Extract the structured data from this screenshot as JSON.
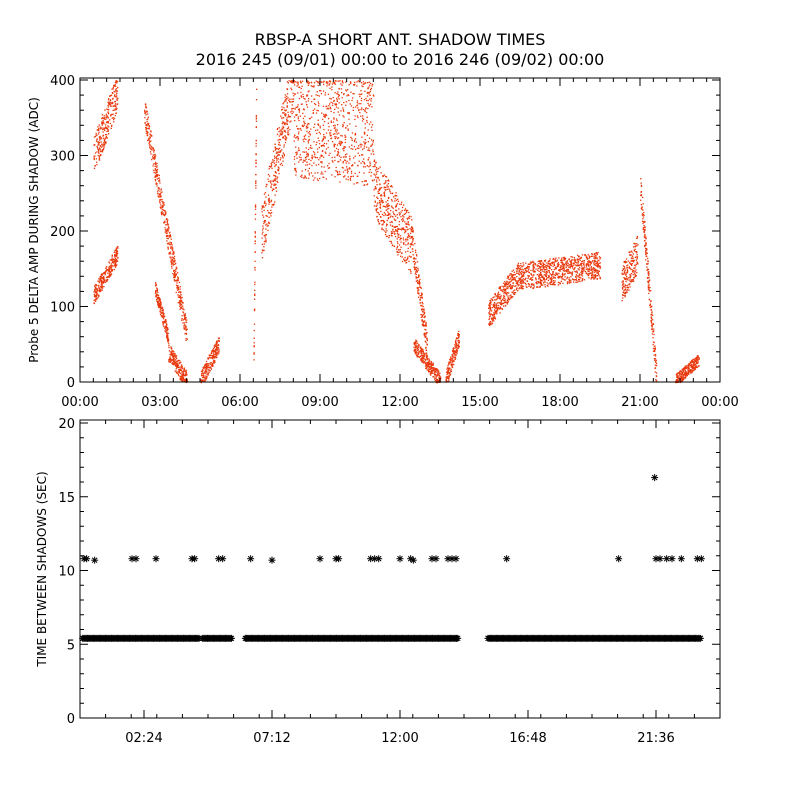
{
  "title": "RBSP-A SHORT ANT. SHADOW TIMES",
  "subtitle": "2016 245 (09/01) 00:00 to 2016 246 (09/02) 00:00",
  "colors": {
    "top_points": "#e8380c",
    "bottom_points": "#000000",
    "axes": "#000000"
  },
  "chart_data": [
    {
      "type": "scatter",
      "ylabel": "Probe 5 DELTA AMP DURING SHADOW (ADC)",
      "xlabel": "",
      "xlim_hours": [
        0,
        24
      ],
      "ylim": [
        0,
        400
      ],
      "xticks": [
        "00:00",
        "03:00",
        "06:00",
        "09:00",
        "12:00",
        "15:00",
        "18:00",
        "21:00",
        "00:00"
      ],
      "yticks": [
        "0",
        "100",
        "200",
        "300",
        "400"
      ],
      "marker": "dot",
      "segments_note_units": "x in hours, y in ADC",
      "segments": [
        {
          "x0": 0.5,
          "x1": 1.4,
          "y0": 115,
          "y1": 170,
          "spread": 12
        },
        {
          "x0": 0.5,
          "x1": 1.4,
          "y0": 300,
          "y1": 385,
          "spread": 25
        },
        {
          "x0": 2.4,
          "x1": 4.0,
          "y0": 360,
          "y1": 60,
          "spread": 18
        },
        {
          "x0": 2.8,
          "x1": 3.3,
          "y0": 125,
          "y1": 60,
          "spread": 10
        },
        {
          "x0": 3.3,
          "x1": 4.0,
          "y0": 40,
          "y1": 2,
          "spread": 12
        },
        {
          "x0": 4.5,
          "x1": 5.2,
          "y0": 2,
          "y1": 50,
          "spread": 12
        },
        {
          "x0": 6.5,
          "x1": 6.6,
          "y0": 20,
          "y1": 380,
          "spread": 10
        },
        {
          "x0": 6.8,
          "x1": 8.0,
          "y0": 200,
          "y1": 400,
          "spread": 40
        },
        {
          "x0": 8.0,
          "x1": 11.0,
          "y0": 340,
          "y1": 330,
          "spread": 70
        },
        {
          "x0": 11.0,
          "x1": 12.4,
          "y0": 260,
          "y1": 180,
          "spread": 40
        },
        {
          "x0": 12.4,
          "x1": 13.0,
          "y0": 200,
          "y1": 50,
          "spread": 20
        },
        {
          "x0": 12.5,
          "x1": 13.5,
          "y0": 50,
          "y1": 2,
          "spread": 10
        },
        {
          "x0": 13.7,
          "x1": 14.2,
          "y0": 2,
          "y1": 60,
          "spread": 12
        },
        {
          "x0": 15.3,
          "x1": 16.4,
          "y0": 90,
          "y1": 140,
          "spread": 18
        },
        {
          "x0": 16.4,
          "x1": 19.5,
          "y0": 140,
          "y1": 155,
          "spread": 18
        },
        {
          "x0": 20.3,
          "x1": 20.9,
          "y0": 130,
          "y1": 170,
          "spread": 25
        },
        {
          "x0": 21.0,
          "x1": 21.6,
          "y0": 260,
          "y1": 10,
          "spread": 18
        },
        {
          "x0": 22.3,
          "x1": 23.2,
          "y0": 2,
          "y1": 30,
          "spread": 8
        }
      ]
    },
    {
      "type": "scatter",
      "ylabel": "TIME BETWEEN SHADOWS (SEC)",
      "xlabel": "",
      "xlim_hours": [
        0,
        24
      ],
      "ylim": [
        0,
        20
      ],
      "xticks": [
        "02:24",
        "07:12",
        "12:00",
        "16:48",
        "21:36"
      ],
      "xtick_hours": [
        2.4,
        7.2,
        12.0,
        16.8,
        21.6
      ],
      "yticks": [
        "0",
        "5",
        "10",
        "15",
        "20"
      ],
      "marker": "asterisk",
      "baseline_value": 5.4,
      "baseline_ranges_hours": [
        [
          0.1,
          4.5
        ],
        [
          4.6,
          5.7
        ],
        [
          6.2,
          14.2
        ],
        [
          15.3,
          23.3
        ]
      ],
      "points": [
        {
          "x": 0.15,
          "y": 10.8
        },
        {
          "x": 0.25,
          "y": 10.8
        },
        {
          "x": 0.55,
          "y": 10.7
        },
        {
          "x": 1.95,
          "y": 10.8
        },
        {
          "x": 2.1,
          "y": 10.8
        },
        {
          "x": 2.85,
          "y": 10.8
        },
        {
          "x": 4.2,
          "y": 10.8
        },
        {
          "x": 4.3,
          "y": 10.8
        },
        {
          "x": 5.2,
          "y": 10.8
        },
        {
          "x": 5.35,
          "y": 10.8
        },
        {
          "x": 6.4,
          "y": 10.8
        },
        {
          "x": 7.2,
          "y": 10.7
        },
        {
          "x": 9.0,
          "y": 10.8
        },
        {
          "x": 9.6,
          "y": 10.8
        },
        {
          "x": 9.7,
          "y": 10.8
        },
        {
          "x": 10.9,
          "y": 10.8
        },
        {
          "x": 11.05,
          "y": 10.8
        },
        {
          "x": 11.2,
          "y": 10.8
        },
        {
          "x": 12.0,
          "y": 10.8
        },
        {
          "x": 12.4,
          "y": 10.8
        },
        {
          "x": 12.5,
          "y": 10.7
        },
        {
          "x": 13.2,
          "y": 10.8
        },
        {
          "x": 13.35,
          "y": 10.8
        },
        {
          "x": 13.8,
          "y": 10.8
        },
        {
          "x": 13.95,
          "y": 10.8
        },
        {
          "x": 14.1,
          "y": 10.8
        },
        {
          "x": 16.0,
          "y": 10.8
        },
        {
          "x": 20.2,
          "y": 10.8
        },
        {
          "x": 21.55,
          "y": 16.3
        },
        {
          "x": 21.6,
          "y": 10.8
        },
        {
          "x": 21.75,
          "y": 10.8
        },
        {
          "x": 22.0,
          "y": 10.8
        },
        {
          "x": 22.2,
          "y": 10.8
        },
        {
          "x": 22.55,
          "y": 10.8
        },
        {
          "x": 23.15,
          "y": 10.8
        },
        {
          "x": 23.3,
          "y": 10.8
        }
      ]
    }
  ]
}
